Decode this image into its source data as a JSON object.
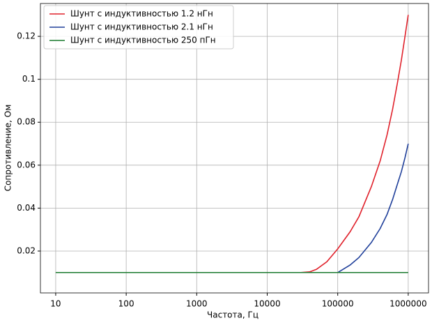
{
  "chart_data": {
    "type": "line",
    "xlabel": "Частота, Гц",
    "ylabel": "Сопротивление, Ом",
    "xscale": "log",
    "grid": true,
    "legend": "upper left",
    "xlim": [
      6.07,
      1940000
    ],
    "ylim": [
      0.0005,
      0.1353
    ],
    "xticks": [
      10,
      100,
      1000,
      10000,
      100000,
      1000000
    ],
    "yticks": [
      0.02,
      0.04,
      0.06,
      0.08,
      0.1,
      0.12
    ],
    "series": [
      {
        "name": "Шунт с индуктивностью  1.2 нГн",
        "color": "#e0202a",
        "x": [
          10,
          100,
          1000,
          10000,
          30000,
          40000,
          50000,
          70000,
          100000,
          150000,
          200000,
          300000,
          400000,
          500000,
          600000,
          700000,
          800000,
          900000,
          1000000
        ],
        "values": [
          0.01,
          0.01,
          0.01,
          0.01,
          0.01,
          0.0103,
          0.0115,
          0.015,
          0.021,
          0.029,
          0.036,
          0.05,
          0.062,
          0.074,
          0.086,
          0.098,
          0.109,
          0.12,
          0.13
        ]
      },
      {
        "name": "Шунт с индуктивностью 2.1 нГн",
        "color": "#1f3f9a",
        "x": [
          100000,
          150000,
          200000,
          300000,
          400000,
          500000,
          600000,
          700000,
          800000,
          900000,
          1000000
        ],
        "values": [
          0.01,
          0.0135,
          0.017,
          0.024,
          0.0305,
          0.037,
          0.044,
          0.051,
          0.057,
          0.0635,
          0.07
        ]
      },
      {
        "name": "Шунт с индуктивностью  250 пГн",
        "color": "#1a7a2e",
        "x": [
          10,
          100,
          1000,
          10000,
          100000,
          1000000
        ],
        "values": [
          0.01,
          0.01,
          0.01,
          0.01,
          0.01,
          0.01
        ]
      }
    ]
  }
}
